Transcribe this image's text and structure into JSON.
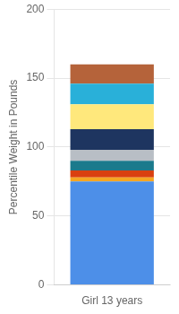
{
  "chart_data": {
    "type": "bar",
    "stacked": true,
    "categories": [
      "Girl 13 years"
    ],
    "series": [
      {
        "color": "#4D8FE8",
        "values": [
          75
        ]
      },
      {
        "color": "#F5A623",
        "values": [
          3
        ]
      },
      {
        "color": "#D94010",
        "values": [
          5
        ]
      },
      {
        "color": "#1B7A8C",
        "values": [
          7
        ]
      },
      {
        "color": "#B8BEC5",
        "values": [
          8
        ]
      },
      {
        "color": "#1E3560",
        "values": [
          15
        ]
      },
      {
        "color": "#FFE87C",
        "values": [
          18
        ]
      },
      {
        "color": "#29B0D9",
        "values": [
          15
        ]
      },
      {
        "color": "#B5633A",
        "values": [
          14
        ]
      }
    ],
    "ylabel": "Percentile Weight in Pounds",
    "ylim": [
      0,
      200
    ],
    "yticks": [
      0,
      50,
      100,
      150,
      200
    ],
    "grid": true
  }
}
